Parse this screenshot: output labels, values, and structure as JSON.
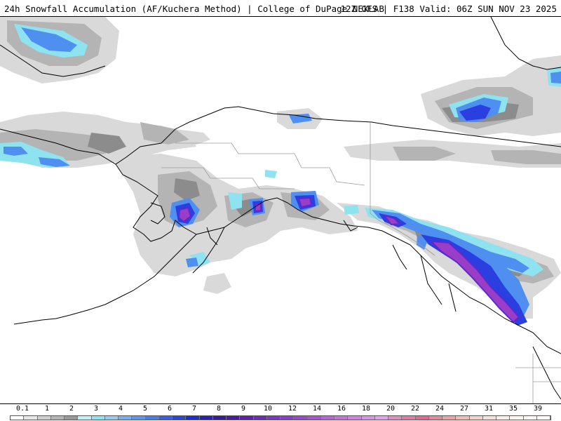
{
  "header": {
    "title_left": "24h Snowfall Accumulation (AF/Kuchera Method) | College of DuPage NEXLAB",
    "title_right": "12Z GFS | F138 Valid: 06Z SUN NOV 23 2025"
  },
  "colors": {
    "land_outline": "#000000",
    "state_border": "#9a9a9a",
    "snow_light_gray": "#d9d9d9",
    "snow_mid_gray": "#b4b4b4",
    "snow_dark_gray": "#8c8c8c",
    "snow_cyan": "#8fe3f0",
    "snow_blue": "#4f8ff0",
    "snow_deep_blue": "#2b3fe0",
    "snow_indigo": "#5a2ad0",
    "snow_purple": "#9a3ec8"
  },
  "legend": {
    "labels": [
      "0.1",
      "1",
      "2",
      "3",
      "4",
      "5",
      "6",
      "7",
      "8",
      "9",
      "10",
      "12",
      "14",
      "16",
      "18",
      "20",
      "22",
      "24",
      "27",
      "31",
      "35",
      "39"
    ],
    "swatches": [
      "#ffffff",
      "#e6e6e6",
      "#cfcfcf",
      "#b4b4b4",
      "#999999",
      "#bff2f8",
      "#8fe3f0",
      "#9cc9f4",
      "#7aaef2",
      "#5f95ee",
      "#4a7cea",
      "#3a5fe6",
      "#2c44e0",
      "#1f2cd8",
      "#2a1fb6",
      "#3a1a9c",
      "#4c1aa0",
      "#5e22ac",
      "#6e2aba",
      "#7e34c4",
      "#8e3ccc",
      "#9e46d0",
      "#ae52d6",
      "#bc62dc",
      "#c872e2",
      "#d282e6",
      "#dc92ea",
      "#e4a2ee",
      "#e28cc0",
      "#e07aa6",
      "#de6c92",
      "#e48a98",
      "#eaa4a6",
      "#efbcb6",
      "#f3d2c8",
      "#f7e2d8",
      "#fbeee4",
      "#fdf4ec",
      "#fef8f2",
      "#fefaf6"
    ]
  }
}
